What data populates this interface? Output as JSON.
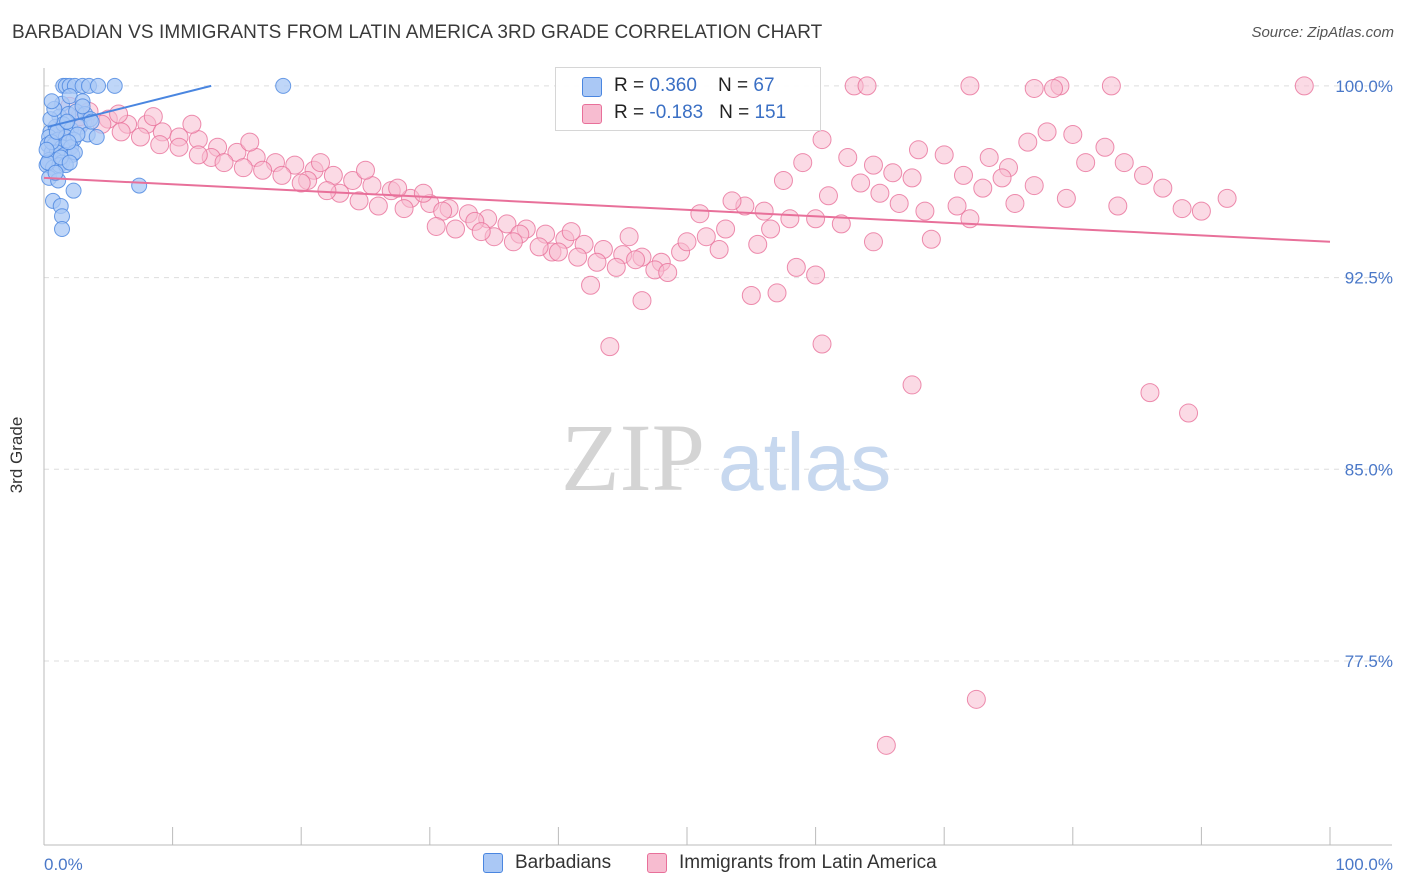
{
  "title": "BARBADIAN VS IMMIGRANTS FROM LATIN AMERICA 3RD GRADE CORRELATION CHART",
  "source": "Source: ZipAtlas.com",
  "watermark": {
    "zip": "ZIP",
    "atlas": "atlas"
  },
  "colors": {
    "blue": "#4a86e0",
    "blue_fill": "#aac8f5",
    "pink": "#e8709a",
    "pink_fill": "#f7bcd0",
    "tick_label": "#4a78c8"
  },
  "legend": {
    "rows": [
      {
        "r_label": "R = ",
        "r_value": "0.360",
        "n_label": "N = ",
        "n_value": "67"
      },
      {
        "r_label": "R = ",
        "r_value": "-0.183",
        "n_label": "N = ",
        "n_value": "151"
      }
    ]
  },
  "chart_data": {
    "type": "scatter",
    "title": "BARBADIAN VS IMMIGRANTS FROM LATIN AMERICA 3RD GRADE CORRELATION CHART",
    "xlabel": "",
    "ylabel": "3rd Grade",
    "xlim": [
      0,
      100
    ],
    "ylim": [
      70.3,
      100.7
    ],
    "x_tick_labels": [
      "0.0%",
      "100.0%"
    ],
    "y_ticks": [
      77.5,
      85.0,
      92.5,
      100.0
    ],
    "y_tick_labels": [
      "77.5%",
      "85.0%",
      "92.5%",
      "100.0%"
    ],
    "grid": "horizontal dashed",
    "legend_position": "top-center",
    "series": [
      {
        "name": "Barbadians",
        "color": "#4a86e0",
        "r": 0.36,
        "n": 67,
        "trend": [
          [
            0.3,
            98.4
          ],
          [
            13.0,
            100.0
          ]
        ],
        "points": [
          [
            1.5,
            100.0
          ],
          [
            1.7,
            100.0
          ],
          [
            2.0,
            100.0
          ],
          [
            2.4,
            100.0
          ],
          [
            3.0,
            100.0
          ],
          [
            3.5,
            100.0
          ],
          [
            4.2,
            100.0
          ],
          [
            5.5,
            100.0
          ],
          [
            18.6,
            100.0
          ],
          [
            1.4,
            99.3
          ],
          [
            2.0,
            99.6
          ],
          [
            3.0,
            99.4
          ],
          [
            1.2,
            98.8
          ],
          [
            1.9,
            98.9
          ],
          [
            2.5,
            99.0
          ],
          [
            3.2,
            98.9
          ],
          [
            3.6,
            98.7
          ],
          [
            0.5,
            98.2
          ],
          [
            0.9,
            98.4
          ],
          [
            1.5,
            98.5
          ],
          [
            2.1,
            98.3
          ],
          [
            2.8,
            98.4
          ],
          [
            3.4,
            98.1
          ],
          [
            0.4,
            98.0
          ],
          [
            1.1,
            97.9
          ],
          [
            1.7,
            98.0
          ],
          [
            2.3,
            97.9
          ],
          [
            4.1,
            98.0
          ],
          [
            0.3,
            97.7
          ],
          [
            0.8,
            97.7
          ],
          [
            1.4,
            97.6
          ],
          [
            2.1,
            97.6
          ],
          [
            0.6,
            97.4
          ],
          [
            1.0,
            97.4
          ],
          [
            1.6,
            97.3
          ],
          [
            2.2,
            97.3
          ],
          [
            2.4,
            97.4
          ],
          [
            0.4,
            97.1
          ],
          [
            0.9,
            97.1
          ],
          [
            1.4,
            97.0
          ],
          [
            0.2,
            96.9
          ],
          [
            0.7,
            96.8
          ],
          [
            1.2,
            96.9
          ],
          [
            1.7,
            96.9
          ],
          [
            0.4,
            96.4
          ],
          [
            1.1,
            96.3
          ],
          [
            2.3,
            95.9
          ],
          [
            0.7,
            95.5
          ],
          [
            1.3,
            95.3
          ],
          [
            1.4,
            94.9
          ],
          [
            1.4,
            94.4
          ],
          [
            7.4,
            96.1
          ],
          [
            0.3,
            97.0
          ],
          [
            0.5,
            98.7
          ],
          [
            0.6,
            97.8
          ],
          [
            1.0,
            98.2
          ],
          [
            1.8,
            98.6
          ],
          [
            2.6,
            98.1
          ],
          [
            3.0,
            99.2
          ],
          [
            0.8,
            99.1
          ],
          [
            1.3,
            97.2
          ],
          [
            0.2,
            97.5
          ],
          [
            2.0,
            97.0
          ],
          [
            0.9,
            96.6
          ],
          [
            3.7,
            98.6
          ],
          [
            1.9,
            97.8
          ],
          [
            0.6,
            99.4
          ]
        ]
      },
      {
        "name": "Immigrants from Latin America",
        "color": "#e8709a",
        "r": -0.183,
        "n": 151,
        "trend": [
          [
            0.0,
            96.4
          ],
          [
            100.0,
            93.9
          ]
        ],
        "points": [
          [
            63.0,
            100.0
          ],
          [
            64.0,
            100.0
          ],
          [
            72.0,
            100.0
          ],
          [
            79.0,
            100.0
          ],
          [
            83.0,
            100.0
          ],
          [
            98.0,
            100.0
          ],
          [
            77.0,
            99.9
          ],
          [
            78.5,
            99.9
          ],
          [
            2.0,
            99.2
          ],
          [
            3.5,
            99.0
          ],
          [
            5.0,
            98.7
          ],
          [
            6.5,
            98.5
          ],
          [
            8.0,
            98.5
          ],
          [
            9.2,
            98.2
          ],
          [
            10.5,
            98.0
          ],
          [
            12.0,
            97.9
          ],
          [
            13.5,
            97.6
          ],
          [
            15.0,
            97.4
          ],
          [
            16.5,
            97.2
          ],
          [
            18.0,
            97.0
          ],
          [
            19.5,
            96.9
          ],
          [
            21.0,
            96.7
          ],
          [
            22.5,
            96.5
          ],
          [
            24.0,
            96.3
          ],
          [
            25.5,
            96.1
          ],
          [
            27.0,
            95.9
          ],
          [
            28.5,
            95.6
          ],
          [
            30.0,
            95.4
          ],
          [
            31.5,
            95.2
          ],
          [
            33.0,
            95.0
          ],
          [
            34.5,
            94.8
          ],
          [
            36.0,
            94.6
          ],
          [
            37.5,
            94.4
          ],
          [
            39.0,
            94.2
          ],
          [
            40.5,
            94.0
          ],
          [
            42.0,
            93.8
          ],
          [
            43.5,
            93.6
          ],
          [
            45.0,
            93.4
          ],
          [
            46.5,
            93.3
          ],
          [
            48.0,
            93.1
          ],
          [
            13.0,
            97.2
          ],
          [
            17.0,
            96.7
          ],
          [
            20.5,
            96.3
          ],
          [
            23.0,
            95.8
          ],
          [
            27.5,
            96.0
          ],
          [
            29.5,
            95.8
          ],
          [
            31.0,
            95.1
          ],
          [
            33.5,
            94.7
          ],
          [
            35.0,
            94.1
          ],
          [
            37.0,
            94.2
          ],
          [
            39.5,
            93.5
          ],
          [
            41.5,
            93.3
          ],
          [
            43.0,
            93.1
          ],
          [
            44.5,
            92.9
          ],
          [
            46.0,
            93.2
          ],
          [
            47.5,
            92.8
          ],
          [
            49.5,
            93.5
          ],
          [
            51.5,
            94.1
          ],
          [
            53.0,
            94.4
          ],
          [
            54.5,
            95.3
          ],
          [
            56.0,
            95.1
          ],
          [
            57.5,
            96.3
          ],
          [
            59.0,
            97.0
          ],
          [
            60.5,
            97.9
          ],
          [
            62.5,
            97.2
          ],
          [
            64.5,
            96.9
          ],
          [
            66.0,
            96.6
          ],
          [
            68.0,
            97.5
          ],
          [
            70.0,
            97.3
          ],
          [
            71.5,
            96.5
          ],
          [
            73.0,
            96.0
          ],
          [
            75.0,
            96.8
          ],
          [
            76.5,
            97.8
          ],
          [
            78.0,
            98.2
          ],
          [
            80.0,
            98.1
          ],
          [
            81.0,
            97.0
          ],
          [
            82.5,
            97.6
          ],
          [
            84.0,
            97.0
          ],
          [
            85.5,
            96.5
          ],
          [
            87.0,
            96.0
          ],
          [
            88.5,
            95.2
          ],
          [
            90.0,
            95.1
          ],
          [
            92.0,
            95.6
          ],
          [
            75.5,
            95.4
          ],
          [
            73.5,
            97.2
          ],
          [
            67.5,
            96.4
          ],
          [
            65.0,
            95.8
          ],
          [
            62.0,
            94.6
          ],
          [
            60.0,
            94.8
          ],
          [
            58.0,
            94.8
          ],
          [
            55.5,
            93.8
          ],
          [
            52.5,
            93.6
          ],
          [
            50.0,
            93.9
          ],
          [
            48.5,
            92.7
          ],
          [
            46.5,
            91.6
          ],
          [
            42.5,
            92.2
          ],
          [
            58.5,
            92.9
          ],
          [
            64.5,
            93.9
          ],
          [
            69.0,
            94.0
          ],
          [
            72.0,
            94.8
          ],
          [
            55.0,
            91.8
          ],
          [
            57.0,
            91.9
          ],
          [
            60.0,
            92.6
          ],
          [
            44.0,
            89.8
          ],
          [
            60.5,
            89.9
          ],
          [
            67.5,
            88.3
          ],
          [
            86.0,
            88.0
          ],
          [
            89.0,
            87.2
          ],
          [
            72.5,
            76.0
          ],
          [
            65.5,
            74.2
          ],
          [
            1.5,
            97.9
          ],
          [
            3.0,
            98.6
          ],
          [
            4.5,
            98.5
          ],
          [
            6.0,
            98.2
          ],
          [
            7.5,
            98.0
          ],
          [
            9.0,
            97.7
          ],
          [
            10.5,
            97.6
          ],
          [
            12.0,
            97.3
          ],
          [
            14.0,
            97.0
          ],
          [
            15.5,
            96.8
          ],
          [
            18.5,
            96.5
          ],
          [
            20.0,
            96.2
          ],
          [
            22.0,
            95.9
          ],
          [
            24.5,
            95.5
          ],
          [
            26.0,
            95.3
          ],
          [
            28.0,
            95.2
          ],
          [
            30.5,
            94.5
          ],
          [
            32.0,
            94.4
          ],
          [
            34.0,
            94.3
          ],
          [
            36.5,
            93.9
          ],
          [
            38.5,
            93.7
          ],
          [
            40.0,
            93.5
          ],
          [
            41.0,
            94.3
          ],
          [
            45.5,
            94.1
          ],
          [
            51.0,
            95.0
          ],
          [
            53.5,
            95.5
          ],
          [
            56.5,
            94.4
          ],
          [
            61.0,
            95.7
          ],
          [
            63.5,
            96.2
          ],
          [
            66.5,
            95.4
          ],
          [
            68.5,
            95.1
          ],
          [
            71.0,
            95.3
          ],
          [
            74.5,
            96.4
          ],
          [
            77.0,
            96.1
          ],
          [
            79.5,
            95.6
          ],
          [
            83.5,
            95.3
          ],
          [
            8.5,
            98.8
          ],
          [
            11.5,
            98.5
          ],
          [
            16.0,
            97.8
          ],
          [
            21.5,
            97.0
          ],
          [
            25.0,
            96.7
          ],
          [
            2.8,
            98.8
          ],
          [
            5.8,
            98.9
          ]
        ]
      }
    ]
  }
}
